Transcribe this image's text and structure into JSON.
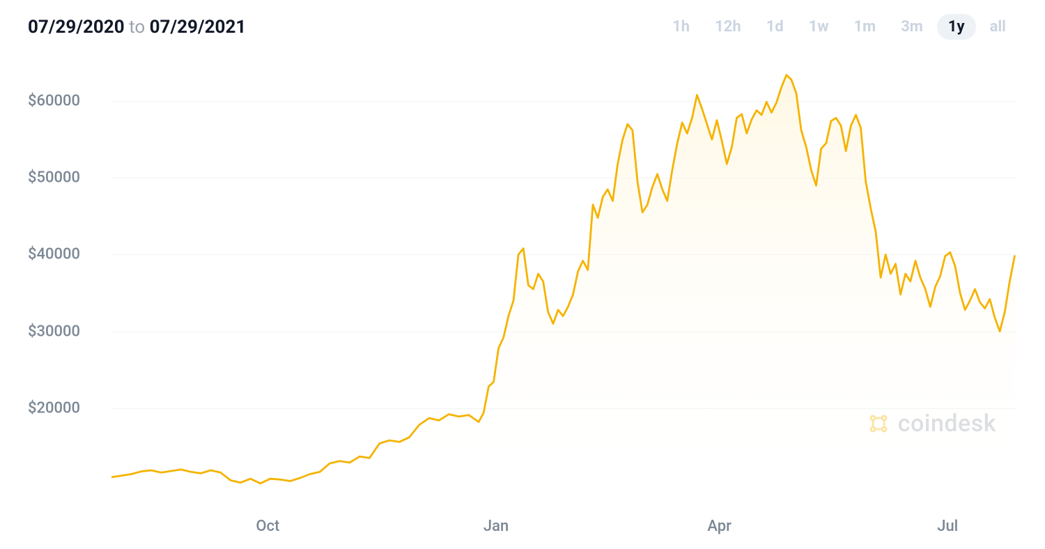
{
  "header": {
    "date_start": "07/29/2020",
    "date_to_word": "to",
    "date_end": "07/29/2021",
    "tabs": [
      {
        "label": "1h",
        "selected": false
      },
      {
        "label": "12h",
        "selected": false
      },
      {
        "label": "1d",
        "selected": false
      },
      {
        "label": "1w",
        "selected": false
      },
      {
        "label": "1m",
        "selected": false
      },
      {
        "label": "3m",
        "selected": false
      },
      {
        "label": "1y",
        "selected": true
      },
      {
        "label": "all",
        "selected": false
      }
    ]
  },
  "chart": {
    "type": "area",
    "line_color": "#f5b301",
    "line_width": 2.8,
    "fill_top_color": "#fff4d6",
    "fill_bottom_color": "#ffffff",
    "fill_opacity": 0.65,
    "background_color": "#ffffff",
    "grid_color": "#f1f3f5",
    "axis_text_color": "#7b8794",
    "axis_fontsize": 22,
    "y_axis": {
      "ticks": [
        20000,
        30000,
        40000,
        50000,
        60000
      ],
      "labels": [
        "$20000",
        "$30000",
        "$40000",
        "$50000",
        "$60000"
      ],
      "min": 8000,
      "max": 65000
    },
    "x_axis": {
      "min": 0,
      "max": 365,
      "ticks": [
        63,
        155,
        245,
        337
      ],
      "labels": [
        "Oct",
        "Jan",
        "Apr",
        "Jul"
      ]
    },
    "watermark": {
      "text": "coindesk",
      "icon_color": "#f5b301"
    },
    "series": [
      [
        0,
        11000
      ],
      [
        4,
        11200
      ],
      [
        8,
        11400
      ],
      [
        12,
        11750
      ],
      [
        16,
        11900
      ],
      [
        20,
        11600
      ],
      [
        24,
        11800
      ],
      [
        28,
        12000
      ],
      [
        32,
        11700
      ],
      [
        36,
        11500
      ],
      [
        40,
        11900
      ],
      [
        44,
        11600
      ],
      [
        48,
        10600
      ],
      [
        52,
        10300
      ],
      [
        56,
        10800
      ],
      [
        60,
        10200
      ],
      [
        64,
        10800
      ],
      [
        68,
        10700
      ],
      [
        72,
        10500
      ],
      [
        76,
        10900
      ],
      [
        80,
        11400
      ],
      [
        84,
        11700
      ],
      [
        88,
        12800
      ],
      [
        92,
        13100
      ],
      [
        96,
        12900
      ],
      [
        100,
        13700
      ],
      [
        104,
        13500
      ],
      [
        108,
        15400
      ],
      [
        112,
        15800
      ],
      [
        116,
        15600
      ],
      [
        120,
        16200
      ],
      [
        124,
        17800
      ],
      [
        128,
        18700
      ],
      [
        132,
        18400
      ],
      [
        136,
        19200
      ],
      [
        140,
        18900
      ],
      [
        144,
        19100
      ],
      [
        148,
        18200
      ],
      [
        150,
        19400
      ],
      [
        152,
        22800
      ],
      [
        154,
        23400
      ],
      [
        156,
        27800
      ],
      [
        158,
        29200
      ],
      [
        160,
        32000
      ],
      [
        162,
        34000
      ],
      [
        164,
        40000
      ],
      [
        166,
        40800
      ],
      [
        168,
        36000
      ],
      [
        170,
        35500
      ],
      [
        172,
        37500
      ],
      [
        174,
        36500
      ],
      [
        176,
        32500
      ],
      [
        178,
        31000
      ],
      [
        180,
        32800
      ],
      [
        182,
        32000
      ],
      [
        184,
        33200
      ],
      [
        186,
        34800
      ],
      [
        188,
        37800
      ],
      [
        190,
        39200
      ],
      [
        192,
        38000
      ],
      [
        194,
        46500
      ],
      [
        196,
        44800
      ],
      [
        198,
        47500
      ],
      [
        200,
        48500
      ],
      [
        202,
        47000
      ],
      [
        204,
        51800
      ],
      [
        206,
        55000
      ],
      [
        208,
        57000
      ],
      [
        210,
        56200
      ],
      [
        212,
        49500
      ],
      [
        214,
        45500
      ],
      [
        216,
        46500
      ],
      [
        218,
        48800
      ],
      [
        220,
        50500
      ],
      [
        222,
        48500
      ],
      [
        224,
        47000
      ],
      [
        226,
        51000
      ],
      [
        228,
        54500
      ],
      [
        230,
        57200
      ],
      [
        232,
        55800
      ],
      [
        234,
        57800
      ],
      [
        236,
        60800
      ],
      [
        238,
        59000
      ],
      [
        240,
        57000
      ],
      [
        242,
        55000
      ],
      [
        244,
        57500
      ],
      [
        246,
        54800
      ],
      [
        248,
        51800
      ],
      [
        250,
        54000
      ],
      [
        252,
        57800
      ],
      [
        254,
        58300
      ],
      [
        256,
        55800
      ],
      [
        258,
        57600
      ],
      [
        260,
        58800
      ],
      [
        262,
        58200
      ],
      [
        264,
        59900
      ],
      [
        266,
        58500
      ],
      [
        268,
        59800
      ],
      [
        270,
        61800
      ],
      [
        272,
        63400
      ],
      [
        274,
        62800
      ],
      [
        276,
        61000
      ],
      [
        278,
        56200
      ],
      [
        280,
        54000
      ],
      [
        282,
        51000
      ],
      [
        284,
        49000
      ],
      [
        286,
        53800
      ],
      [
        288,
        54500
      ],
      [
        290,
        57400
      ],
      [
        292,
        57800
      ],
      [
        294,
        56800
      ],
      [
        296,
        53500
      ],
      [
        298,
        56800
      ],
      [
        300,
        58200
      ],
      [
        302,
        56500
      ],
      [
        304,
        49500
      ],
      [
        306,
        46000
      ],
      [
        308,
        43000
      ],
      [
        310,
        37000
      ],
      [
        312,
        40000
      ],
      [
        314,
        37500
      ],
      [
        316,
        38800
      ],
      [
        318,
        34800
      ],
      [
        320,
        37500
      ],
      [
        322,
        36500
      ],
      [
        324,
        39200
      ],
      [
        326,
        37000
      ],
      [
        328,
        35500
      ],
      [
        330,
        33200
      ],
      [
        332,
        35800
      ],
      [
        334,
        37200
      ],
      [
        336,
        39800
      ],
      [
        338,
        40300
      ],
      [
        340,
        38500
      ],
      [
        342,
        35000
      ],
      [
        344,
        32800
      ],
      [
        346,
        34000
      ],
      [
        348,
        35500
      ],
      [
        350,
        33800
      ],
      [
        352,
        33000
      ],
      [
        354,
        34200
      ],
      [
        356,
        31800
      ],
      [
        358,
        30000
      ],
      [
        360,
        32500
      ],
      [
        362,
        36500
      ],
      [
        364,
        39800
      ]
    ]
  }
}
